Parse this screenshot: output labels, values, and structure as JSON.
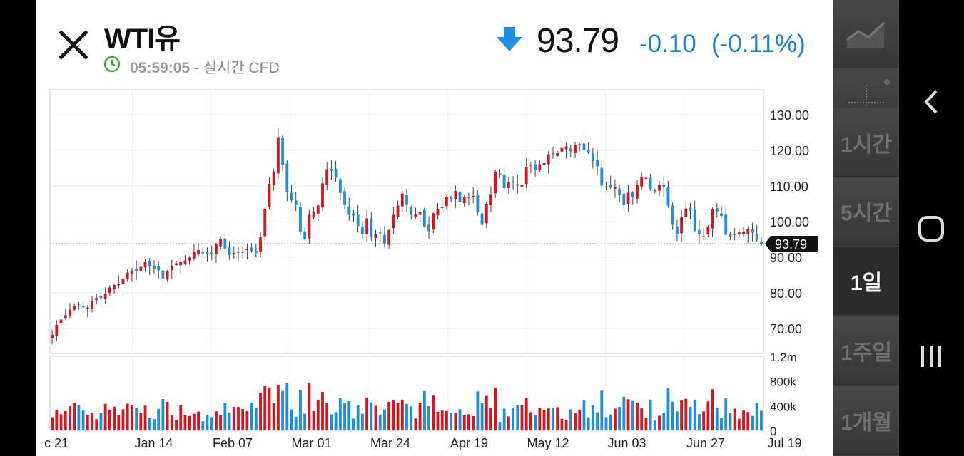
{
  "header": {
    "title": "WTI유",
    "time": "05:59:05",
    "time_suffix": " - 실시간 CFD",
    "price": "93.79",
    "change": "-0.10",
    "change_pct": "(-0.11%)",
    "direction": "down"
  },
  "colors": {
    "up": "#d6161f",
    "down": "#1c8fe3",
    "accent": "#1f7fd6",
    "clock": "#3caa3c"
  },
  "toolbar": {
    "chart_type_icon": "line-chart-icon",
    "crosshair_icon": "crosshair-icon",
    "intervals": [
      "1시간",
      "5시간",
      "1일",
      "1주일",
      "1개월"
    ],
    "selected_interval": "1일"
  },
  "nav": {
    "back_icon": "back-chevron-icon",
    "home_icon": "home-icon",
    "recents_icon": "recents-icon"
  },
  "chart_data": {
    "type": "candlestick",
    "price_axis": {
      "ticks": [
        "130.00",
        "120.00",
        "110.00",
        "100.00",
        "90.00",
        "80.00",
        "70.00"
      ],
      "ylim": [
        63,
        137
      ],
      "current_price_label": "93.79"
    },
    "volume_axis": {
      "ticks": [
        "1.2m",
        "800k",
        "400k",
        "0"
      ],
      "ylim": [
        0,
        1200000
      ]
    },
    "x_labels": [
      "c 21",
      "Jan 14",
      "Feb 07",
      "Mar 01",
      "Mar 24",
      "Apr 19",
      "May 12",
      "Jun 03",
      "Jun 27",
      "Jul 19"
    ],
    "close_series": [
      68.2,
      71.0,
      72.5,
      73.7,
      75.3,
      76.3,
      76.6,
      76.0,
      75.9,
      77.6,
      78.6,
      78.5,
      79.8,
      81.5,
      82.2,
      82.4,
      84.0,
      85.7,
      86.1,
      86.0,
      87.3,
      88.6,
      87.6,
      86.8,
      86.3,
      84.0,
      86.1,
      87.4,
      88.3,
      88.6,
      89.1,
      89.9,
      91.4,
      92.0,
      91.1,
      90.8,
      91.0,
      93.6,
      95.1,
      92.4,
      90.6,
      91.2,
      91.6,
      91.6,
      92.3,
      91.8,
      91.2,
      95.6,
      103.6,
      110.6,
      114.1,
      123.7,
      116.0,
      108.2,
      106.0,
      104.6,
      97.2,
      95.0,
      101.9,
      102.8,
      104.5,
      110.7,
      114.7,
      114.3,
      112.3,
      108.0,
      104.6,
      102.0,
      101.7,
      98.7,
      96.6,
      100.9,
      95.8,
      96.5,
      96.8,
      93.8,
      97.6,
      101.9,
      104.5,
      107.9,
      104.7,
      101.9,
      102.1,
      102.8,
      98.6,
      97.3,
      102.3,
      103.4,
      104.1,
      107.0,
      106.3,
      108.6,
      105.4,
      106.9,
      107.0,
      107.2,
      102.6,
      99.1,
      104.9,
      107.7,
      114.0,
      113.2,
      109.4,
      111.1,
      111.0,
      110.1,
      110.3,
      115.4,
      116.0,
      114.5,
      116.1,
      116.4,
      118.9,
      118.9,
      119.2,
      120.7,
      121.1,
      119.7,
      121.4,
      121.7,
      120.0,
      119.3,
      117.0,
      115.5,
      110.1,
      109.8,
      109.5,
      109.6,
      107.5,
      104.6,
      108.1,
      106.9,
      110.2,
      112.6,
      112.3,
      109.2,
      108.6,
      110.3,
      109.6,
      104.5,
      99.1,
      96.4,
      101.2,
      103.7,
      103.0,
      97.4,
      96.4,
      95.9,
      98.5,
      103.4,
      102.8,
      101.6,
      96.3,
      95.8,
      96.6,
      97.0,
      97.2,
      97.9,
      96.9,
      94.9,
      93.8
    ]
  }
}
